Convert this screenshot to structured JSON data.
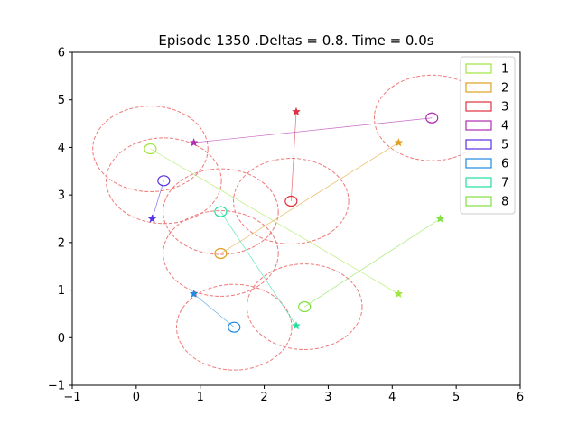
{
  "chart_data": {
    "type": "scatter",
    "title": "Episode 1350 .Deltas = 0.8. Time = 0.0s",
    "xlabel": "",
    "ylabel": "",
    "xlim": [
      -1,
      6
    ],
    "ylim": [
      -1,
      6
    ],
    "xticks": [
      "−1",
      "0",
      "1",
      "2",
      "3",
      "4",
      "5",
      "6"
    ],
    "yticks": [
      "−1",
      "0",
      "1",
      "2",
      "3",
      "4",
      "5",
      "6"
    ],
    "xtick_values": [
      -1,
      0,
      1,
      2,
      3,
      4,
      5,
      6
    ],
    "ytick_values": [
      -1,
      0,
      1,
      2,
      3,
      4,
      5,
      6
    ],
    "grid": false,
    "legend_position": "top-right",
    "delta_radius": 0.9,
    "delta_color": "#f07878",
    "series": [
      {
        "name": "1",
        "color": "#a0e640",
        "agent": [
          0.22,
          3.97
        ],
        "goal": [
          4.1,
          0.92
        ]
      },
      {
        "name": "2",
        "color": "#e0a020",
        "agent": [
          1.32,
          1.77
        ],
        "goal": [
          4.1,
          4.1
        ]
      },
      {
        "name": "3",
        "color": "#e03040",
        "agent": [
          2.42,
          2.87
        ],
        "goal": [
          2.5,
          4.75
        ]
      },
      {
        "name": "4",
        "color": "#b02cb0",
        "agent": [
          4.62,
          4.62
        ],
        "goal": [
          0.9,
          4.1
        ]
      },
      {
        "name": "5",
        "color": "#5a30e0",
        "agent": [
          0.43,
          3.3
        ],
        "goal": [
          0.25,
          2.5
        ]
      },
      {
        "name": "6",
        "color": "#2088e0",
        "agent": [
          1.53,
          0.22
        ],
        "goal": [
          0.9,
          0.92
        ]
      },
      {
        "name": "7",
        "color": "#20e0a0",
        "agent": [
          1.32,
          2.65
        ],
        "goal": [
          2.5,
          0.25
        ]
      },
      {
        "name": "8",
        "color": "#80e040",
        "agent": [
          2.63,
          0.65
        ],
        "goal": [
          4.75,
          2.5
        ]
      }
    ]
  }
}
